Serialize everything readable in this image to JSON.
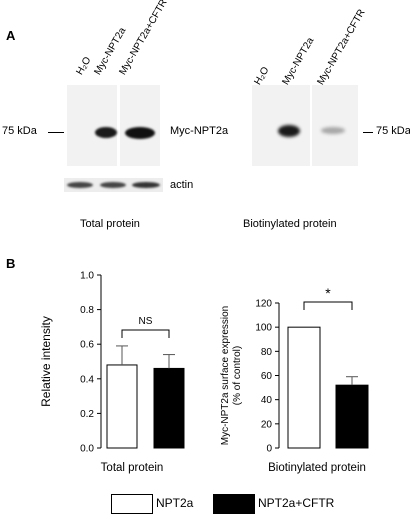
{
  "panel_a": {
    "label": "A",
    "total": {
      "lanes": [
        "H₂O",
        "Myc-NPT2a",
        "Myc-NPT2a+CFTR"
      ],
      "marker": "75 kDa",
      "band_label": "Myc-NPT2a",
      "loading_label": "actin",
      "caption": "Total protein"
    },
    "biotin": {
      "lanes": [
        "H₂O",
        "Myc-NPT2a",
        "Myc-NPT2a+CFTR"
      ],
      "marker": "75 kDa",
      "caption": "Biotinylated protein"
    }
  },
  "panel_b": {
    "label": "B"
  },
  "chart_data": [
    {
      "type": "bar",
      "categories": [
        "NPT2a",
        "NPT2a+CFTR"
      ],
      "values": [
        0.48,
        0.46
      ],
      "errors": [
        0.11,
        0.08
      ],
      "ylabel": "Relative intensity",
      "xlabel": "Total protein",
      "ylim": [
        0,
        1.0
      ],
      "yticks": [
        "0.0",
        "0.2",
        "0.4",
        "0.6",
        "0.8",
        "1.0"
      ],
      "annotation": "NS",
      "colors": [
        "#ffffff",
        "#000000"
      ]
    },
    {
      "type": "bar",
      "categories": [
        "NPT2a",
        "NPT2a+CFTR"
      ],
      "values": [
        100,
        52
      ],
      "errors": [
        0,
        7
      ],
      "ylabel_line1": "Myc-NPT2a surface expression",
      "ylabel_line2": "(% of control)",
      "xlabel": "Biotinylated protein",
      "ylim": [
        0,
        120
      ],
      "yticks": [
        "0",
        "20",
        "40",
        "60",
        "80",
        "100",
        "120"
      ],
      "annotation": "*",
      "colors": [
        "#ffffff",
        "#000000"
      ]
    }
  ],
  "legend": [
    {
      "label": "NPT2a",
      "color": "#ffffff"
    },
    {
      "label": "NPT2a+CFTR",
      "color": "#000000"
    }
  ]
}
